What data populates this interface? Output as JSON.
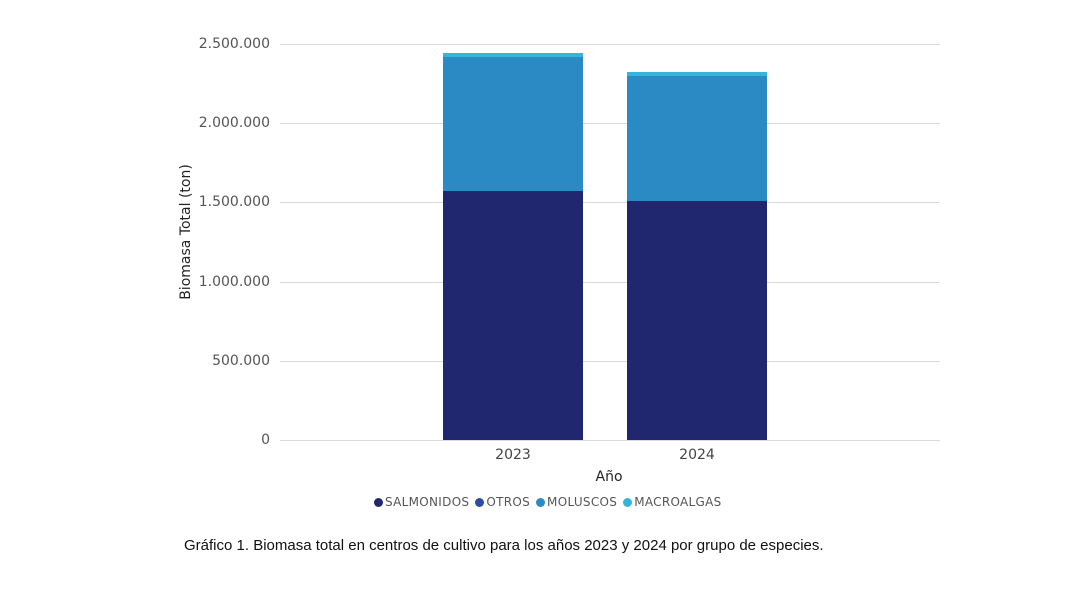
{
  "chart_data": {
    "type": "bar",
    "stacked": true,
    "title": "",
    "xlabel": "Año",
    "ylabel": "Biomasa Total (ton)",
    "ylim": [
      0,
      2500000
    ],
    "yticks": [
      "0",
      "500.000",
      "1.000.000",
      "1.500.000",
      "2.000.000",
      "2.500.000"
    ],
    "grid": true,
    "legend_position": "bottom",
    "categories": [
      "2023",
      "2024"
    ],
    "series": [
      {
        "name": "SALMONIDOS",
        "color": "#20276f",
        "values": [
          1572000,
          1509000
        ]
      },
      {
        "name": "OTROS",
        "color": "#2b4da0",
        "values": [
          0,
          0
        ]
      },
      {
        "name": "MOLUSCOS",
        "color": "#2b8ac4",
        "values": [
          846000,
          789000
        ]
      },
      {
        "name": "MACROALGAS",
        "color": "#35b5dc",
        "values": [
          25000,
          25000
        ]
      }
    ]
  },
  "axis": {
    "ylabel": "Biomasa Total (ton)",
    "xlabel": "Año",
    "yticks": [
      {
        "label": "2.500.000",
        "value": 2500000
      },
      {
        "label": "2.000.000",
        "value": 2000000
      },
      {
        "label": "1.500.000",
        "value": 1500000
      },
      {
        "label": "1.000.000",
        "value": 1000000
      },
      {
        "label": "500.000",
        "value": 500000
      },
      {
        "label": "0",
        "value": 0
      }
    ],
    "xticks": [
      "2023",
      "2024"
    ]
  },
  "legend": [
    {
      "label": "SALMONIDOS",
      "color": "#20276f"
    },
    {
      "label": "OTROS",
      "color": "#2b4da0"
    },
    {
      "label": "MOLUSCOS",
      "color": "#2b8ac4"
    },
    {
      "label": "MACROALGAS",
      "color": "#35b5dc"
    }
  ],
  "caption": "Gráfico 1.  Biomasa total en centros de cultivo para los años 2023 y 2024 por grupo de especies."
}
